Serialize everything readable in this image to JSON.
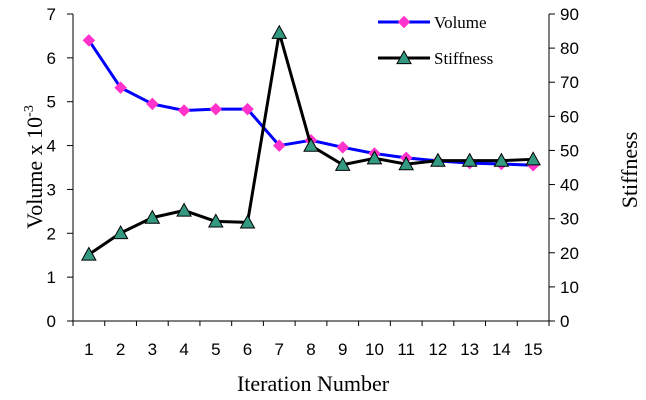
{
  "chart_data": {
    "type": "line",
    "x": [
      1,
      2,
      3,
      4,
      5,
      6,
      7,
      8,
      9,
      10,
      11,
      12,
      13,
      14,
      15
    ],
    "xlabel": "Iteration Number",
    "ylabel_left": "Volume x 10",
    "ylabel_left_superscript": "-3",
    "ylabel_right": "Stiffness",
    "ylim_left": [
      0,
      7
    ],
    "ylim_right": [
      0,
      90
    ],
    "left_ticks": [
      0,
      1,
      2,
      3,
      4,
      5,
      6,
      7
    ],
    "right_ticks": [
      0,
      10,
      20,
      30,
      40,
      50,
      60,
      70,
      80,
      90
    ],
    "grid": false,
    "legend_position": "top-right",
    "series": [
      {
        "name": "Volume",
        "axis": "left",
        "color": "#0000ff",
        "marker": "diamond",
        "marker_color": "#ff33cc",
        "values": [
          6.4,
          5.32,
          4.95,
          4.8,
          4.83,
          4.83,
          4.0,
          4.12,
          3.96,
          3.82,
          3.72,
          3.65,
          3.6,
          3.58,
          3.55
        ]
      },
      {
        "name": "Stiffness",
        "axis": "right",
        "color": "#000000",
        "marker": "triangle",
        "marker_color": "#339980",
        "values": [
          19.5,
          25.8,
          30.3,
          32.4,
          29.2,
          28.9,
          84.5,
          51.4,
          45.8,
          47.7,
          46.0,
          47.0,
          47.0,
          47.0,
          47.4
        ]
      }
    ]
  }
}
